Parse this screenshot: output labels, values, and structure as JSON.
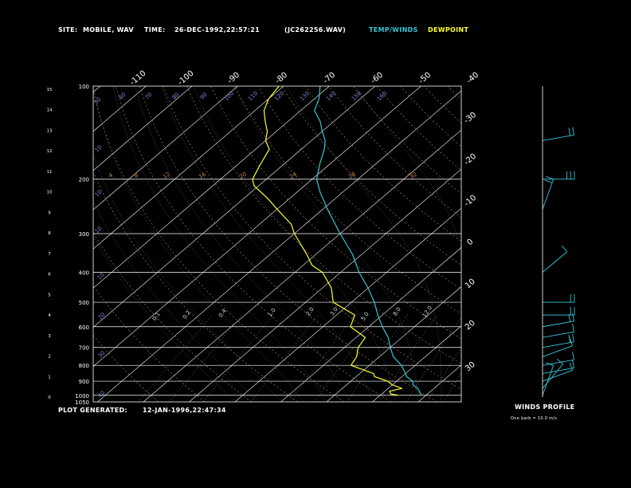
{
  "header": {
    "site_label": "SITE:",
    "site_value": "MOBILE, WAV",
    "time_label": "TIME:",
    "time_value": "26-DEC-1992,22:57:21",
    "file_id": "(JC262256.WAV)",
    "temp_winds_label": "TEMP/WINDS",
    "dewpoint_label": "DEWPOINT"
  },
  "footer": {
    "plot_generated_label": "PLOT GENERATED:",
    "plot_generated_value": "12-JAN-1996,22:47:34"
  },
  "winds_panel": {
    "title": "WINDS PROFILE",
    "note": "One barb = 10.0 m/s"
  },
  "colors": {
    "background": "#000000",
    "frame": "#ffffff",
    "isobar": "#ffffff",
    "isotherm": "#ffffff",
    "temperature": "#35c6d6",
    "dewpoint": "#ffff2e",
    "dry_adiabat": "#c98a4e",
    "moist_adiabat": "#7a8ad8",
    "mixing_ratio": "#d8d8d8",
    "winds": "#35c6d6",
    "temp_label": "#35c6d6",
    "dew_label": "#ffff2e",
    "header_text": "#ffffff"
  },
  "chart_data": {
    "type": "line",
    "chart_kind": "skew-T log-P sounding",
    "y_pressure_axis": {
      "scale": "log",
      "range_mb": [
        1050,
        100
      ],
      "ticks": [
        "100",
        "200",
        "300",
        "400",
        "500",
        "600",
        "700",
        "800",
        "900",
        "1000",
        "1050"
      ]
    },
    "y_height_axis": {
      "unit": "km",
      "ticks": [
        "0",
        "1",
        "2",
        "3",
        "4",
        "5",
        "6",
        "7",
        "8",
        "9",
        "10",
        "11",
        "12",
        "13",
        "14",
        "15"
      ]
    },
    "temperature_axis_labels": [
      "-110",
      "-100",
      "-90",
      "-80",
      "-70",
      "-60",
      "-50",
      "-40",
      "-30",
      "-20",
      "-10",
      "0",
      "10",
      "20",
      "30"
    ],
    "dry_adiabat_labels": [
      "4",
      "8",
      "12",
      "16",
      "20",
      "24",
      "28",
      "32"
    ],
    "moist_adiabat_labels": [
      "10",
      "10",
      "10",
      "10",
      "20",
      "30",
      "40",
      "50",
      "60",
      "70",
      "80",
      "90",
      "100",
      "110",
      "120",
      "130",
      "140",
      "150",
      "160"
    ],
    "mixing_ratio_labels": [
      "0.1",
      "0.2",
      "0.4",
      "1.0",
      "2.0",
      "3.0",
      "5.0",
      "8.0",
      "12.0"
    ],
    "series": [
      {
        "name": "TEMP/WINDS",
        "points": [
          [
            1000,
            19
          ],
          [
            980,
            18
          ],
          [
            950,
            16.5
          ],
          [
            925,
            14.5
          ],
          [
            900,
            13.5
          ],
          [
            870,
            11
          ],
          [
            850,
            10
          ],
          [
            800,
            7
          ],
          [
            750,
            3
          ],
          [
            700,
            0
          ],
          [
            650,
            -3
          ],
          [
            600,
            -7
          ],
          [
            550,
            -11
          ],
          [
            500,
            -15
          ],
          [
            450,
            -20
          ],
          [
            400,
            -26
          ],
          [
            350,
            -32
          ],
          [
            300,
            -40
          ],
          [
            250,
            -49
          ],
          [
            220,
            -55
          ],
          [
            200,
            -59
          ],
          [
            180,
            -62
          ],
          [
            160,
            -65
          ],
          [
            150,
            -67
          ],
          [
            140,
            -70
          ],
          [
            130,
            -73
          ],
          [
            120,
            -77
          ],
          [
            110,
            -79
          ],
          [
            100,
            -82
          ]
        ]
      },
      {
        "name": "DEWPOINT",
        "points": [
          [
            1000,
            14
          ],
          [
            990,
            12
          ],
          [
            970,
            11
          ],
          [
            950,
            13
          ],
          [
            925,
            10
          ],
          [
            900,
            8
          ],
          [
            870,
            4
          ],
          [
            850,
            3
          ],
          [
            800,
            -4
          ],
          [
            750,
            -5
          ],
          [
            700,
            -7
          ],
          [
            650,
            -8
          ],
          [
            600,
            -14
          ],
          [
            550,
            -16
          ],
          [
            500,
            -24
          ],
          [
            450,
            -28
          ],
          [
            400,
            -34
          ],
          [
            380,
            -38
          ],
          [
            350,
            -42
          ],
          [
            300,
            -50
          ],
          [
            280,
            -53
          ],
          [
            250,
            -60
          ],
          [
            230,
            -65
          ],
          [
            210,
            -71
          ],
          [
            200,
            -73
          ],
          [
            180,
            -75
          ],
          [
            160,
            -77
          ],
          [
            150,
            -80
          ],
          [
            140,
            -82
          ],
          [
            130,
            -85
          ],
          [
            120,
            -88
          ],
          [
            110,
            -90
          ],
          [
            100,
            -91
          ]
        ]
      }
    ],
    "winds": [
      {
        "p": 1000,
        "dir": 200,
        "spd": 5
      },
      {
        "p": 950,
        "dir": 220,
        "spd": 8
      },
      {
        "p": 900,
        "dir": 250,
        "spd": 10
      },
      {
        "p": 850,
        "dir": 260,
        "spd": 12
      },
      {
        "p": 800,
        "dir": 260,
        "spd": 14
      },
      {
        "p": 750,
        "dir": 250,
        "spd": 13
      },
      {
        "p": 700,
        "dir": 260,
        "spd": 15
      },
      {
        "p": 650,
        "dir": 260,
        "spd": 14
      },
      {
        "p": 600,
        "dir": 260,
        "spd": 16
      },
      {
        "p": 550,
        "dir": 270,
        "spd": 18
      },
      {
        "p": 500,
        "dir": 270,
        "spd": 20
      },
      {
        "p": 400,
        "dir": 230,
        "spd": 12
      },
      {
        "p": 250,
        "dir": 200,
        "spd": 15
      },
      {
        "p": 200,
        "dir": 270,
        "spd": 28
      },
      {
        "p": 150,
        "dir": 260,
        "spd": 22
      }
    ]
  }
}
